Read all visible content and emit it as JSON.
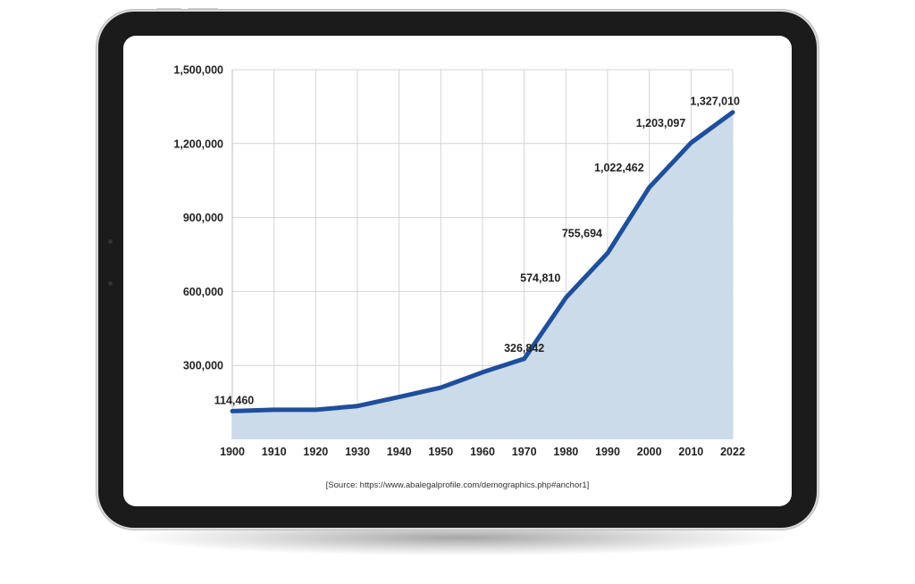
{
  "chart_data": {
    "type": "area",
    "title": "",
    "xlabel": "",
    "ylabel": "",
    "x": [
      "1900",
      "1910",
      "1920",
      "1930",
      "1940",
      "1950",
      "1960",
      "1970",
      "1980",
      "1990",
      "2000",
      "2010",
      "2022"
    ],
    "series": [
      {
        "values": [
          114460,
          120000,
          120000,
          135000,
          172000,
          210000,
          272000,
          326842,
          574810,
          755694,
          1022462,
          1203097,
          1327010
        ]
      }
    ],
    "data_labels": [
      {
        "index": 0,
        "text": "114,460"
      },
      {
        "index": 7,
        "text": "326,842"
      },
      {
        "index": 8,
        "text": "574,810"
      },
      {
        "index": 9,
        "text": "755,694"
      },
      {
        "index": 10,
        "text": "1,022,462"
      },
      {
        "index": 11,
        "text": "1,203,097"
      },
      {
        "index": 12,
        "text": "1,327,010"
      }
    ],
    "yticks": [
      300000,
      600000,
      900000,
      1200000,
      1500000
    ],
    "ytick_labels": [
      "300,000",
      "600,000",
      "900,000",
      "1,200,000",
      "1,500,000"
    ],
    "ylim": [
      0,
      1500000
    ],
    "grid": true,
    "colors": {
      "line": "#1f4e9b",
      "fill": "#c9d9e9",
      "grid": "#d4d4d4"
    }
  },
  "source_text": "[Source: https://www.abalegalprofile.com/demographics.php#anchor1]"
}
